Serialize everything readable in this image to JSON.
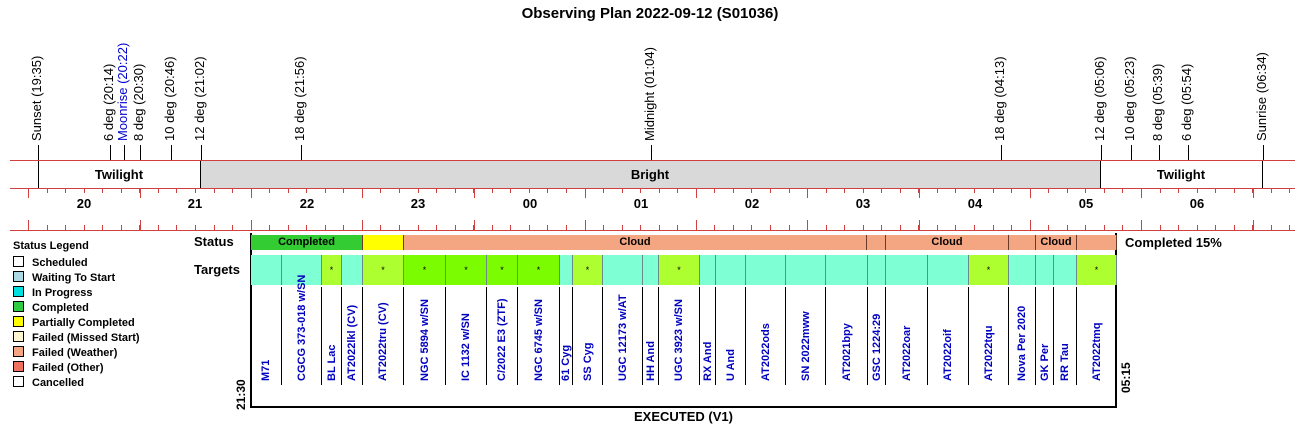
{
  "title": "Observing Plan 2022-09-12 (S01036)",
  "events": [
    {
      "label": "Sunset (19:35)",
      "color": "#000000"
    },
    {
      "label": "6 deg (20:14)",
      "color": "#000000"
    },
    {
      "label": "Moonrise (20:22)",
      "color": "#0000d0"
    },
    {
      "label": "8 deg (20:30)",
      "color": "#000000"
    },
    {
      "label": "10 deg (20:46)",
      "color": "#000000"
    },
    {
      "label": "12 deg (21:02)",
      "color": "#000000"
    },
    {
      "label": "18 deg (21:56)",
      "color": "#000000"
    },
    {
      "label": "Midnight (01:04)",
      "color": "#000000"
    },
    {
      "label": "18 deg (04:13)",
      "color": "#000000"
    },
    {
      "label": "12 deg (05:06)",
      "color": "#000000"
    },
    {
      "label": "10 deg (05:23)",
      "color": "#000000"
    },
    {
      "label": "8 deg (05:39)",
      "color": "#000000"
    },
    {
      "label": "6 deg (05:54)",
      "color": "#000000"
    },
    {
      "label": "Sunrise (06:34)",
      "color": "#000000"
    }
  ],
  "bands": [
    {
      "label": "Twilight",
      "color": "#ffffff"
    },
    {
      "label": "Bright",
      "color": "#d9d9d9"
    },
    {
      "label": "Twilight",
      "color": "#ffffff"
    }
  ],
  "hours": [
    "20",
    "21",
    "22",
    "23",
    "00",
    "01",
    "02",
    "03",
    "04",
    "05",
    "06"
  ],
  "legend": {
    "title": "Status Legend",
    "items": [
      {
        "label": "Scheduled",
        "color": "#ffffff"
      },
      {
        "label": "Waiting To Start",
        "color": "#add8e6"
      },
      {
        "label": "In Progress",
        "color": "#00e0e0"
      },
      {
        "label": "Completed",
        "color": "#2ecc40"
      },
      {
        "label": "Partially Completed",
        "color": "#ffff00"
      },
      {
        "label": "Failed (Missed Start)",
        "color": "#fff5d0"
      },
      {
        "label": "Failed (Weather)",
        "color": "#f4a582"
      },
      {
        "label": "Failed (Other)",
        "color": "#f07060"
      },
      {
        "label": "Cancelled",
        "color": "#ffffff"
      }
    ]
  },
  "row_labels": {
    "status": "Status",
    "targets": "Targets"
  },
  "completion": "Completed 15%",
  "status_segments": [
    {
      "label": "Completed",
      "color": "#33cc33"
    },
    {
      "label": "",
      "color": "#ffff00"
    },
    {
      "label": "Cloud",
      "color": "#f4a582"
    },
    {
      "label": "",
      "color": "#f4a582"
    },
    {
      "label": "Cloud",
      "color": "#f4a582"
    },
    {
      "label": "",
      "color": "#f4a582"
    },
    {
      "label": "Cloud",
      "color": "#f4a582"
    },
    {
      "label": "",
      "color": "#f4a582"
    }
  ],
  "targets": [
    {
      "name": "M71",
      "color": "#7fffd4",
      "mark": ""
    },
    {
      "name": "CGCG 373-018 w/SN",
      "color": "#7fffd4",
      "mark": ""
    },
    {
      "name": "BL Lac",
      "color": "#adff2f",
      "mark": "*"
    },
    {
      "name": "AT2022lkl (CV)",
      "color": "#7fffd4",
      "mark": ""
    },
    {
      "name": "AT2022tru (CV)",
      "color": "#adff2f",
      "mark": "*"
    },
    {
      "name": "NGC 5894 w/SN",
      "color": "#7cfc00",
      "mark": "*"
    },
    {
      "name": "IC 1132 w/SN",
      "color": "#7cfc00",
      "mark": "*"
    },
    {
      "name": "C/2022 E3 (ZTF)",
      "color": "#7cfc00",
      "mark": "*"
    },
    {
      "name": "NGC 6745 w/SN",
      "color": "#7cfc00",
      "mark": "*"
    },
    {
      "name": "61 Cyg",
      "color": "#7fffd4",
      "mark": ""
    },
    {
      "name": "SS Cyg",
      "color": "#adff2f",
      "mark": "*"
    },
    {
      "name": "UGC 12173 w/AT",
      "color": "#7fffd4",
      "mark": ""
    },
    {
      "name": "HH And",
      "color": "#7fffd4",
      "mark": ""
    },
    {
      "name": "UGC 3923 w/SN",
      "color": "#adff2f",
      "mark": "*"
    },
    {
      "name": "RX And",
      "color": "#7fffd4",
      "mark": ""
    },
    {
      "name": "U And",
      "color": "#7fffd4",
      "mark": ""
    },
    {
      "name": "AT2022ods",
      "color": "#7fffd4",
      "mark": ""
    },
    {
      "name": "SN 2022mww",
      "color": "#7fffd4",
      "mark": ""
    },
    {
      "name": "AT2021bpy",
      "color": "#7fffd4",
      "mark": ""
    },
    {
      "name": "GSC 1224:29",
      "color": "#7fffd4",
      "mark": ""
    },
    {
      "name": "AT2022oar",
      "color": "#7fffd4",
      "mark": ""
    },
    {
      "name": "AT2022oif",
      "color": "#7fffd4",
      "mark": ""
    },
    {
      "name": "AT2022tqu",
      "color": "#adff2f",
      "mark": "*"
    },
    {
      "name": "Nova Per 2020",
      "color": "#7fffd4",
      "mark": ""
    },
    {
      "name": "GK Per",
      "color": "#7fffd4",
      "mark": ""
    },
    {
      "name": "RR Tau",
      "color": "#7fffd4",
      "mark": ""
    },
    {
      "name": "AT2022tmq",
      "color": "#adff2f",
      "mark": "*"
    }
  ],
  "start_time": "21:30",
  "end_time": "05:15",
  "footer": "EXECUTED (V1)"
}
